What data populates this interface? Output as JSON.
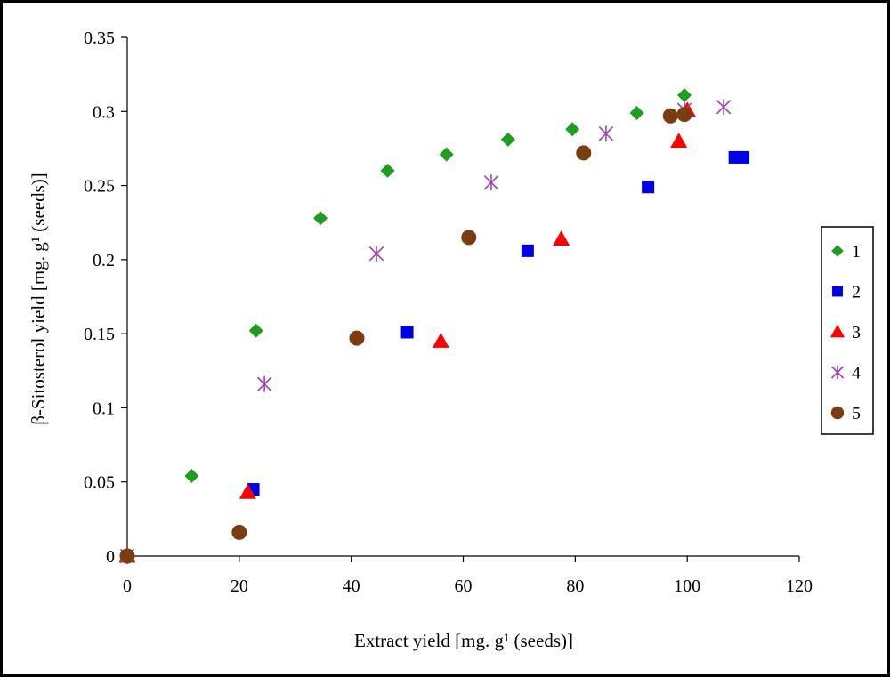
{
  "chart_data": {
    "type": "scatter",
    "title": "",
    "xlabel": "Extract yield [mg. g¹ (seeds)]",
    "ylabel": "β-Sitosterol yield [mg. g¹ (seeds)]",
    "xlim": [
      0,
      120
    ],
    "ylim": [
      0,
      0.35
    ],
    "x_ticks": [
      "0",
      "20",
      "40",
      "60",
      "80",
      "100",
      "120"
    ],
    "y_ticks": [
      "0",
      "0.05",
      "0.1",
      "0.15",
      "0.2",
      "0.25",
      "0.3",
      "0.35"
    ],
    "grid": false,
    "legend_position": "right",
    "series": [
      {
        "name": "1",
        "marker": "diamond",
        "color": "#1e9e1e",
        "points": [
          [
            0,
            0
          ],
          [
            11.5,
            0.054
          ],
          [
            23,
            0.152
          ],
          [
            34.5,
            0.228
          ],
          [
            46.5,
            0.26
          ],
          [
            57,
            0.271
          ],
          [
            68,
            0.281
          ],
          [
            79.5,
            0.288
          ],
          [
            91,
            0.299
          ],
          [
            99.5,
            0.311
          ]
        ]
      },
      {
        "name": "2",
        "marker": "square",
        "color": "#0000e6",
        "points": [
          [
            0,
            0
          ],
          [
            22.5,
            0.045
          ],
          [
            50,
            0.151
          ],
          [
            71.5,
            0.206
          ],
          [
            93,
            0.249
          ],
          [
            108.5,
            0.269
          ],
          [
            110,
            0.269
          ]
        ]
      },
      {
        "name": "3",
        "marker": "triangle",
        "color": "#ff0000",
        "points": [
          [
            0,
            0
          ],
          [
            21.5,
            0.043
          ],
          [
            56,
            0.145
          ],
          [
            77.5,
            0.214
          ],
          [
            98.5,
            0.28
          ],
          [
            100,
            0.301
          ]
        ]
      },
      {
        "name": "4",
        "marker": "star",
        "color": "#a040b0",
        "points": [
          [
            0,
            0
          ],
          [
            24.5,
            0.116
          ],
          [
            44.5,
            0.204
          ],
          [
            65,
            0.252
          ],
          [
            85.5,
            0.285
          ],
          [
            99.5,
            0.301
          ],
          [
            106.5,
            0.303
          ]
        ]
      },
      {
        "name": "5",
        "marker": "circle",
        "color": "#7a3d12",
        "points": [
          [
            0,
            0
          ],
          [
            20,
            0.016
          ],
          [
            41,
            0.147
          ],
          [
            61,
            0.215
          ],
          [
            81.5,
            0.272
          ],
          [
            97,
            0.297
          ],
          [
            99.5,
            0.298
          ]
        ]
      }
    ]
  }
}
